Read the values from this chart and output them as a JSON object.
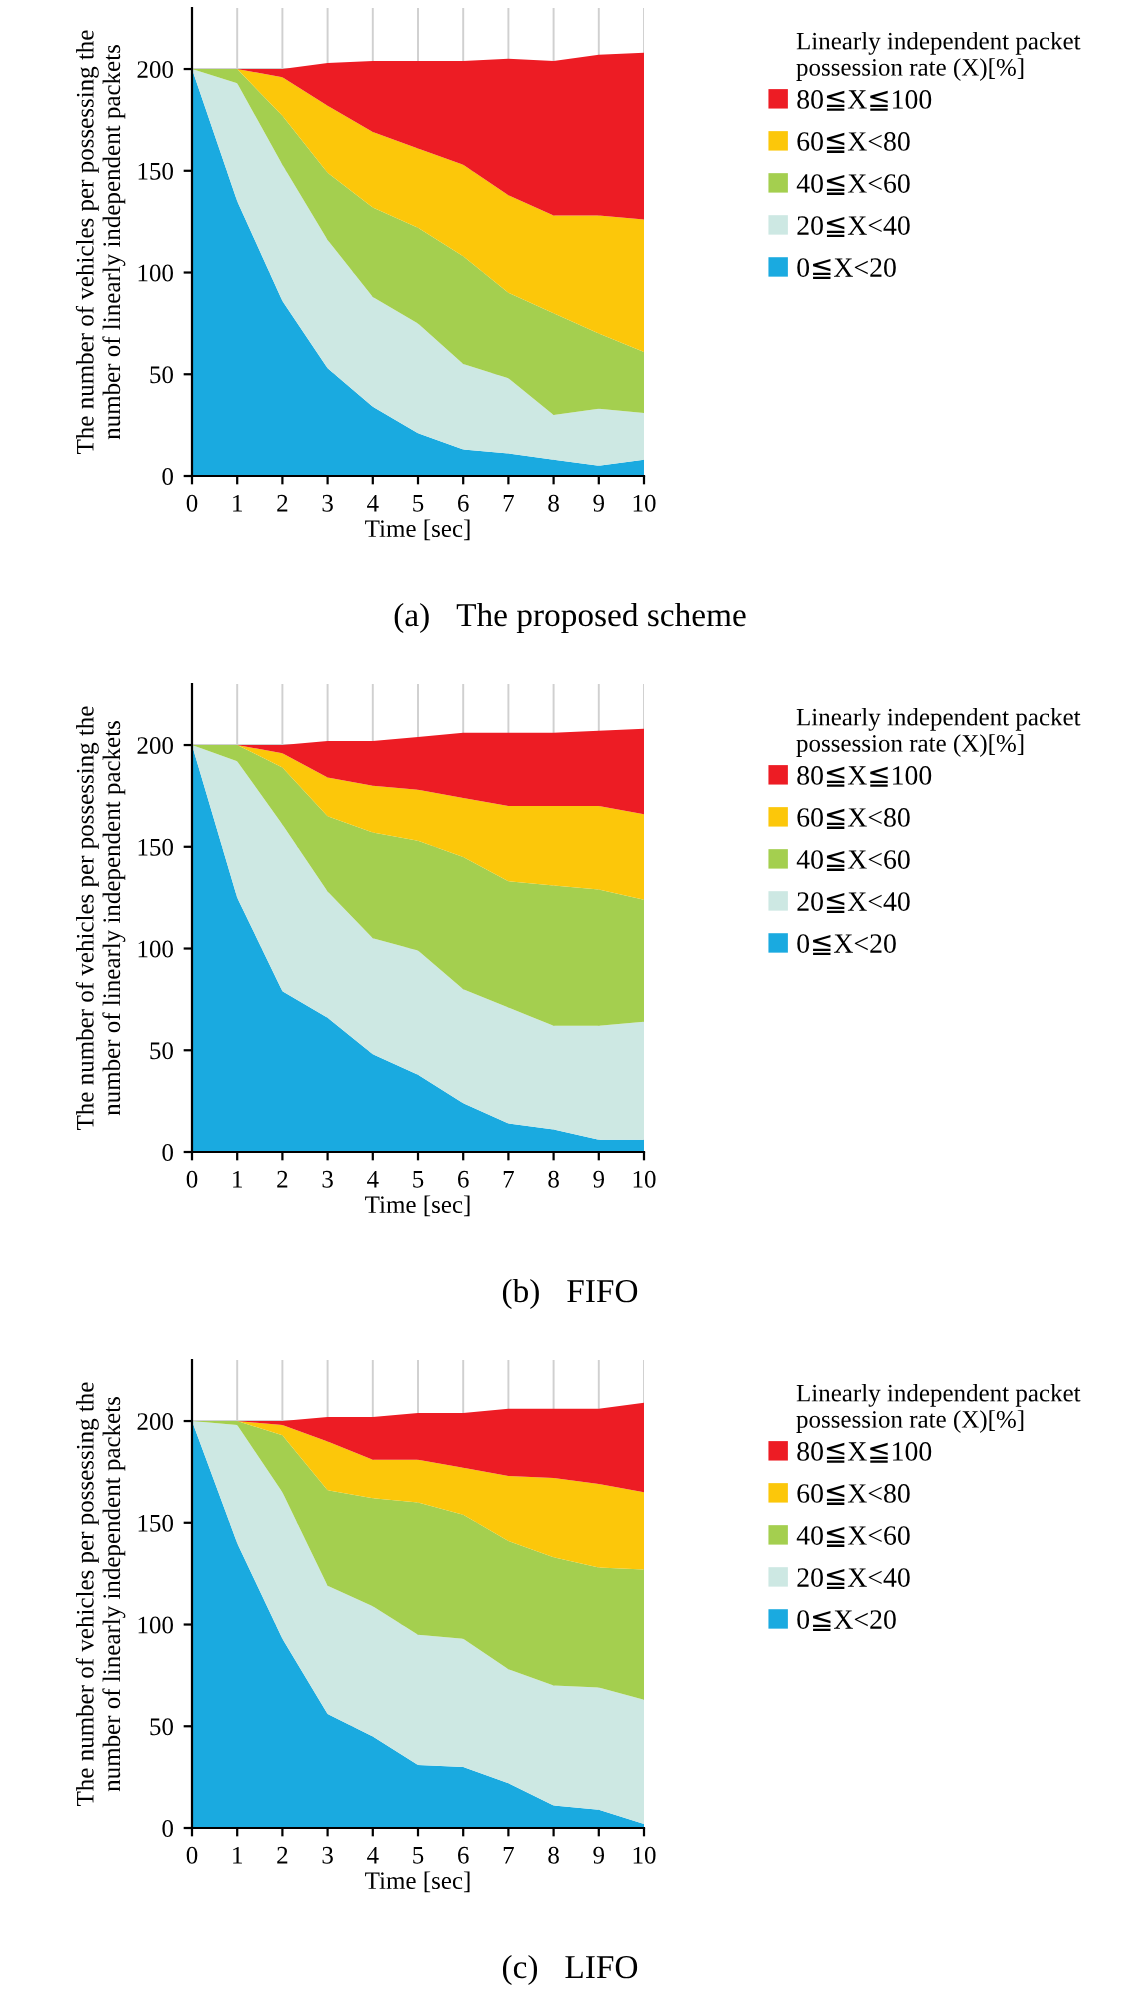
{
  "chart_data": [
    {
      "type": "area",
      "stacked": true,
      "xlabel": "Time [sec]",
      "ylabel": "The number of vehicles per possessing the number of linearly independent packets",
      "legend_title": "Linearly independent packet possession rate (X)[%]",
      "legend": "right",
      "grid": true,
      "annotations": [
        "(a)　The proposed scheme"
      ],
      "x": [
        0,
        1,
        2,
        3,
        4,
        5,
        6,
        7,
        8,
        9,
        10
      ],
      "xlim": [
        0,
        10
      ],
      "xticks": [
        0,
        1,
        2,
        3,
        4,
        5,
        6,
        7,
        8,
        9,
        10
      ],
      "ylim": [
        0,
        230
      ],
      "yticks": [
        0,
        50,
        100,
        150,
        200
      ],
      "series": [
        {
          "name": "0≦X<20",
          "color": "#1aaae0",
          "values": [
            200,
            135,
            86,
            53,
            34,
            21,
            13,
            11,
            8,
            5,
            8
          ]
        },
        {
          "name": "20≦X<40",
          "color": "#cde8e3",
          "values": [
            0,
            58,
            67,
            63,
            54,
            54,
            42,
            37,
            22,
            28,
            23
          ]
        },
        {
          "name": "40≦X<60",
          "color": "#a4cf4f",
          "values": [
            0,
            7,
            24,
            33,
            44,
            47,
            53,
            42,
            50,
            37,
            30
          ]
        },
        {
          "name": "60≦X<80",
          "color": "#fcc70a",
          "values": [
            0,
            0,
            19,
            33,
            37,
            39,
            45,
            48,
            48,
            58,
            65
          ]
        },
        {
          "name": "80≦X≦100",
          "color": "#ed1c24",
          "values": [
            0,
            0,
            4,
            21,
            35,
            43,
            51,
            67,
            76,
            79,
            82
          ]
        }
      ]
    },
    {
      "type": "area",
      "stacked": true,
      "xlabel": "Time [sec]",
      "ylabel": "The number of vehicles per possessing the number of linearly independent packets",
      "legend_title": "Linearly independent packet possession rate (X)[%]",
      "legend": "right",
      "grid": true,
      "annotations": [
        "(b)　FIFO"
      ],
      "x": [
        0,
        1,
        2,
        3,
        4,
        5,
        6,
        7,
        8,
        9,
        10
      ],
      "xlim": [
        0,
        10
      ],
      "xticks": [
        0,
        1,
        2,
        3,
        4,
        5,
        6,
        7,
        8,
        9,
        10
      ],
      "ylim": [
        0,
        230
      ],
      "yticks": [
        0,
        50,
        100,
        150,
        200
      ],
      "series": [
        {
          "name": "0≦X<20",
          "color": "#1aaae0",
          "values": [
            200,
            125,
            79,
            66,
            48,
            38,
            24,
            14,
            11,
            6,
            6
          ]
        },
        {
          "name": "20≦X<40",
          "color": "#cde8e3",
          "values": [
            0,
            67,
            82,
            62,
            57,
            61,
            56,
            57,
            51,
            56,
            58
          ]
        },
        {
          "name": "40≦X<60",
          "color": "#a4cf4f",
          "values": [
            0,
            8,
            28,
            37,
            52,
            54,
            65,
            62,
            69,
            67,
            60
          ]
        },
        {
          "name": "60≦X<80",
          "color": "#fcc70a",
          "values": [
            0,
            0,
            7,
            19,
            23,
            25,
            29,
            37,
            39,
            41,
            42
          ]
        },
        {
          "name": "80≦X≦100",
          "color": "#ed1c24",
          "values": [
            0,
            0,
            4,
            18,
            22,
            26,
            32,
            36,
            36,
            37,
            42
          ]
        }
      ]
    },
    {
      "type": "area",
      "stacked": true,
      "xlabel": "Time [sec]",
      "ylabel": "The number of vehicles per possessing the number of linearly independent packets",
      "legend_title": "Linearly independent packet possession rate (X)[%]",
      "legend": "right",
      "grid": true,
      "annotations": [
        "(c)　LIFO"
      ],
      "x": [
        0,
        1,
        2,
        3,
        4,
        5,
        6,
        7,
        8,
        9,
        10
      ],
      "xlim": [
        0,
        10
      ],
      "xticks": [
        0,
        1,
        2,
        3,
        4,
        5,
        6,
        7,
        8,
        9,
        10
      ],
      "ylim": [
        0,
        230
      ],
      "yticks": [
        0,
        50,
        100,
        150,
        200
      ],
      "series": [
        {
          "name": "0≦X<20",
          "color": "#1aaae0",
          "values": [
            200,
            140,
            93,
            56,
            45,
            31,
            30,
            22,
            11,
            9,
            2
          ]
        },
        {
          "name": "20≦X<40",
          "color": "#cde8e3",
          "values": [
            0,
            58,
            72,
            63,
            64,
            64,
            63,
            56,
            59,
            60,
            61
          ]
        },
        {
          "name": "40≦X<60",
          "color": "#a4cf4f",
          "values": [
            0,
            2,
            28,
            47,
            53,
            65,
            61,
            63,
            63,
            59,
            64
          ]
        },
        {
          "name": "60≦X<80",
          "color": "#fcc70a",
          "values": [
            0,
            0,
            5,
            24,
            19,
            21,
            23,
            32,
            39,
            41,
            38
          ]
        },
        {
          "name": "80≦X≦100",
          "color": "#ed1c24",
          "values": [
            0,
            0,
            2,
            12,
            21,
            23,
            27,
            33,
            34,
            37,
            44
          ]
        }
      ]
    }
  ]
}
